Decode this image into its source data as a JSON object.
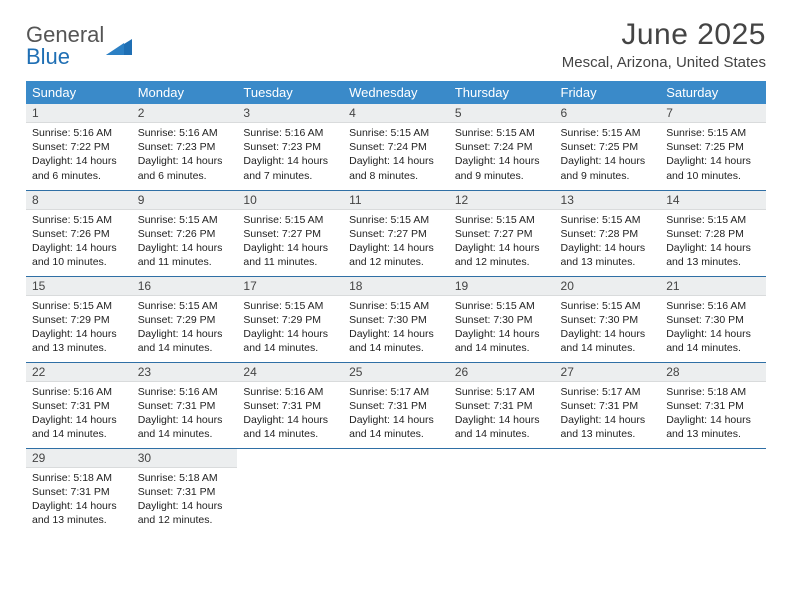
{
  "brand": {
    "word1": "General",
    "word2": "Blue"
  },
  "title": "June 2025",
  "subtitle": "Mescal, Arizona, United States",
  "colors": {
    "header_bg": "#3a8ac9",
    "header_text": "#ffffff",
    "daynum_bg": "#eceeef",
    "rule": "#2f6fa5",
    "brand_blue": "#1f6fb4",
    "text": "#222222"
  },
  "day_labels": [
    "Sunday",
    "Monday",
    "Tuesday",
    "Wednesday",
    "Thursday",
    "Friday",
    "Saturday"
  ],
  "weeks": [
    [
      {
        "n": "1",
        "sr": "5:16 AM",
        "ss": "7:22 PM",
        "dl": "14 hours and 6 minutes."
      },
      {
        "n": "2",
        "sr": "5:16 AM",
        "ss": "7:23 PM",
        "dl": "14 hours and 6 minutes."
      },
      {
        "n": "3",
        "sr": "5:16 AM",
        "ss": "7:23 PM",
        "dl": "14 hours and 7 minutes."
      },
      {
        "n": "4",
        "sr": "5:15 AM",
        "ss": "7:24 PM",
        "dl": "14 hours and 8 minutes."
      },
      {
        "n": "5",
        "sr": "5:15 AM",
        "ss": "7:24 PM",
        "dl": "14 hours and 9 minutes."
      },
      {
        "n": "6",
        "sr": "5:15 AM",
        "ss": "7:25 PM",
        "dl": "14 hours and 9 minutes."
      },
      {
        "n": "7",
        "sr": "5:15 AM",
        "ss": "7:25 PM",
        "dl": "14 hours and 10 minutes."
      }
    ],
    [
      {
        "n": "8",
        "sr": "5:15 AM",
        "ss": "7:26 PM",
        "dl": "14 hours and 10 minutes."
      },
      {
        "n": "9",
        "sr": "5:15 AM",
        "ss": "7:26 PM",
        "dl": "14 hours and 11 minutes."
      },
      {
        "n": "10",
        "sr": "5:15 AM",
        "ss": "7:27 PM",
        "dl": "14 hours and 11 minutes."
      },
      {
        "n": "11",
        "sr": "5:15 AM",
        "ss": "7:27 PM",
        "dl": "14 hours and 12 minutes."
      },
      {
        "n": "12",
        "sr": "5:15 AM",
        "ss": "7:27 PM",
        "dl": "14 hours and 12 minutes."
      },
      {
        "n": "13",
        "sr": "5:15 AM",
        "ss": "7:28 PM",
        "dl": "14 hours and 13 minutes."
      },
      {
        "n": "14",
        "sr": "5:15 AM",
        "ss": "7:28 PM",
        "dl": "14 hours and 13 minutes."
      }
    ],
    [
      {
        "n": "15",
        "sr": "5:15 AM",
        "ss": "7:29 PM",
        "dl": "14 hours and 13 minutes."
      },
      {
        "n": "16",
        "sr": "5:15 AM",
        "ss": "7:29 PM",
        "dl": "14 hours and 14 minutes."
      },
      {
        "n": "17",
        "sr": "5:15 AM",
        "ss": "7:29 PM",
        "dl": "14 hours and 14 minutes."
      },
      {
        "n": "18",
        "sr": "5:15 AM",
        "ss": "7:30 PM",
        "dl": "14 hours and 14 minutes."
      },
      {
        "n": "19",
        "sr": "5:15 AM",
        "ss": "7:30 PM",
        "dl": "14 hours and 14 minutes."
      },
      {
        "n": "20",
        "sr": "5:15 AM",
        "ss": "7:30 PM",
        "dl": "14 hours and 14 minutes."
      },
      {
        "n": "21",
        "sr": "5:16 AM",
        "ss": "7:30 PM",
        "dl": "14 hours and 14 minutes."
      }
    ],
    [
      {
        "n": "22",
        "sr": "5:16 AM",
        "ss": "7:31 PM",
        "dl": "14 hours and 14 minutes."
      },
      {
        "n": "23",
        "sr": "5:16 AM",
        "ss": "7:31 PM",
        "dl": "14 hours and 14 minutes."
      },
      {
        "n": "24",
        "sr": "5:16 AM",
        "ss": "7:31 PM",
        "dl": "14 hours and 14 minutes."
      },
      {
        "n": "25",
        "sr": "5:17 AM",
        "ss": "7:31 PM",
        "dl": "14 hours and 14 minutes."
      },
      {
        "n": "26",
        "sr": "5:17 AM",
        "ss": "7:31 PM",
        "dl": "14 hours and 14 minutes."
      },
      {
        "n": "27",
        "sr": "5:17 AM",
        "ss": "7:31 PM",
        "dl": "14 hours and 13 minutes."
      },
      {
        "n": "28",
        "sr": "5:18 AM",
        "ss": "7:31 PM",
        "dl": "14 hours and 13 minutes."
      }
    ],
    [
      {
        "n": "29",
        "sr": "5:18 AM",
        "ss": "7:31 PM",
        "dl": "14 hours and 13 minutes."
      },
      {
        "n": "30",
        "sr": "5:18 AM",
        "ss": "7:31 PM",
        "dl": "14 hours and 12 minutes."
      },
      null,
      null,
      null,
      null,
      null
    ]
  ],
  "labels": {
    "sunrise": "Sunrise:",
    "sunset": "Sunset:",
    "daylight": "Daylight:"
  }
}
